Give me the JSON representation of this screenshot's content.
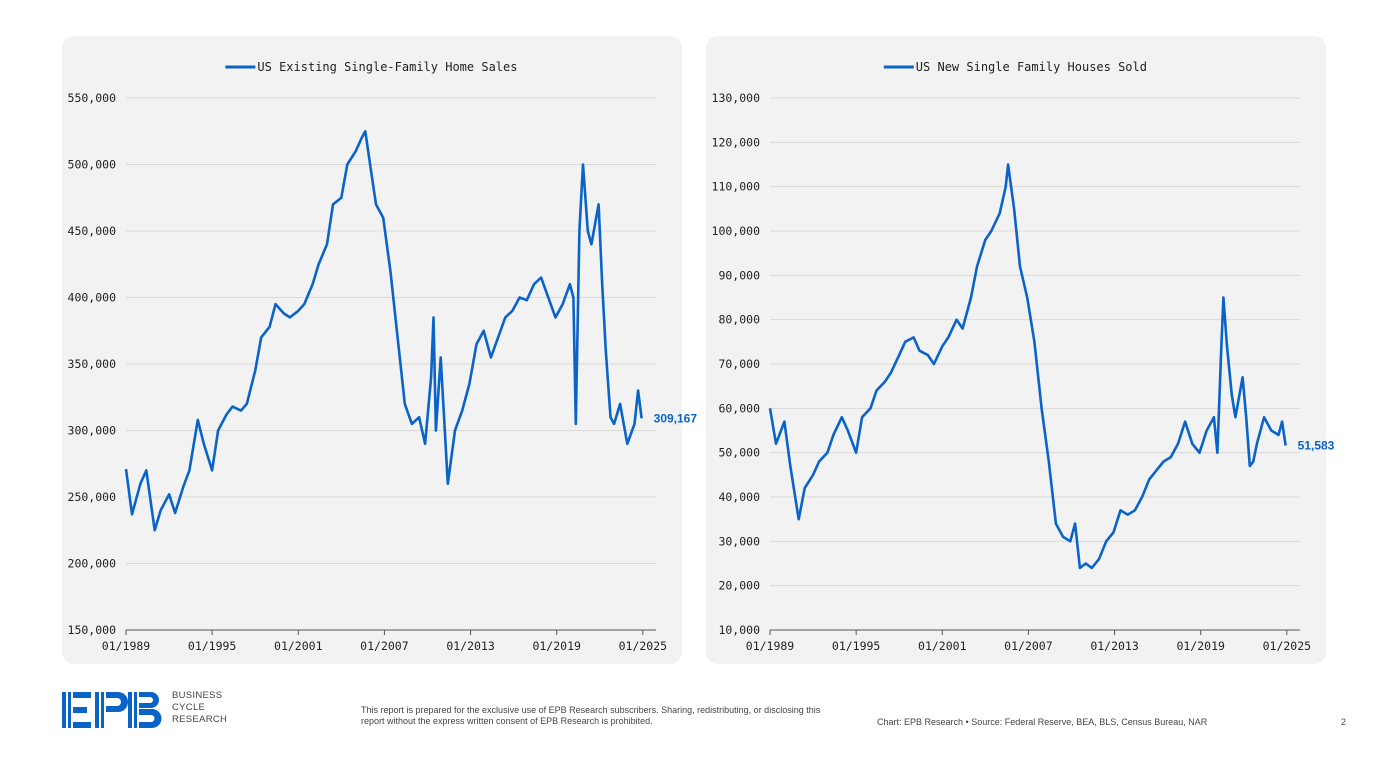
{
  "colors": {
    "line": "#0a64c8",
    "panel": "#f2f2f2",
    "grid": "#d9d9d9",
    "axis": "#555555",
    "brand": "#0a64c8"
  },
  "footer": {
    "logo_text": "EPB",
    "logo_sub": [
      "BUSINESS",
      "CYCLE",
      "RESEARCH"
    ],
    "disclaimer": "This report is prepared for the exclusive use of EPB Research subscribers. Sharing, redistributing, or disclosing this report without the express written consent of EPB Research is prohibited.",
    "source": "Chart: EPB Research  •  Source: Federal Reserve, BEA, BLS, Census Bureau, NAR",
    "page": "2"
  },
  "chart_data": [
    {
      "type": "line",
      "series": [
        {
          "name": "US Existing Single-Family Home Sales",
          "end_label": "309,167"
        }
      ],
      "x_ticks": [
        "01/1989",
        "01/1995",
        "01/2001",
        "01/2007",
        "01/2013",
        "01/2019",
        "01/2025"
      ],
      "y_ticks": [
        "150,000",
        "200,000",
        "250,000",
        "300,000",
        "350,000",
        "400,000",
        "450,000",
        "500,000",
        "550,000"
      ],
      "xlim": [
        "1989-01",
        "2025-12"
      ],
      "ylim": [
        150000,
        550000
      ],
      "grid": "horizontal",
      "legend": "top-center",
      "points": [
        [
          "1989-01",
          271000
        ],
        [
          "1989-06",
          237000
        ],
        [
          "1990-01",
          260000
        ],
        [
          "1990-06",
          270000
        ],
        [
          "1991-01",
          225000
        ],
        [
          "1991-06",
          240000
        ],
        [
          "1992-01",
          252000
        ],
        [
          "1992-06",
          238000
        ],
        [
          "1993-01",
          258000
        ],
        [
          "1993-06",
          270000
        ],
        [
          "1994-01",
          308000
        ],
        [
          "1994-06",
          290000
        ],
        [
          "1995-01",
          270000
        ],
        [
          "1995-06",
          300000
        ],
        [
          "1996-01",
          312000
        ],
        [
          "1996-06",
          318000
        ],
        [
          "1997-01",
          315000
        ],
        [
          "1997-06",
          320000
        ],
        [
          "1998-01",
          345000
        ],
        [
          "1998-06",
          370000
        ],
        [
          "1999-01",
          378000
        ],
        [
          "1999-06",
          395000
        ],
        [
          "2000-01",
          388000
        ],
        [
          "2000-06",
          385000
        ],
        [
          "2001-01",
          390000
        ],
        [
          "2001-06",
          395000
        ],
        [
          "2002-01",
          410000
        ],
        [
          "2002-06",
          425000
        ],
        [
          "2003-01",
          440000
        ],
        [
          "2003-06",
          470000
        ],
        [
          "2004-01",
          475000
        ],
        [
          "2004-06",
          500000
        ],
        [
          "2005-01",
          510000
        ],
        [
          "2005-06",
          520000
        ],
        [
          "2005-09",
          525000
        ],
        [
          "2006-01",
          500000
        ],
        [
          "2006-06",
          470000
        ],
        [
          "2006-12",
          460000
        ],
        [
          "2007-06",
          420000
        ],
        [
          "2007-12",
          370000
        ],
        [
          "2008-06",
          320000
        ],
        [
          "2008-12",
          305000
        ],
        [
          "2009-06",
          310000
        ],
        [
          "2009-11",
          290000
        ],
        [
          "2010-04",
          340000
        ],
        [
          "2010-06",
          385000
        ],
        [
          "2010-08",
          300000
        ],
        [
          "2010-12",
          355000
        ],
        [
          "2011-06",
          260000
        ],
        [
          "2011-12",
          300000
        ],
        [
          "2012-06",
          315000
        ],
        [
          "2012-12",
          335000
        ],
        [
          "2013-06",
          365000
        ],
        [
          "2013-12",
          375000
        ],
        [
          "2014-06",
          355000
        ],
        [
          "2014-12",
          370000
        ],
        [
          "2015-06",
          385000
        ],
        [
          "2015-12",
          390000
        ],
        [
          "2016-06",
          400000
        ],
        [
          "2016-12",
          398000
        ],
        [
          "2017-06",
          410000
        ],
        [
          "2017-12",
          415000
        ],
        [
          "2018-06",
          400000
        ],
        [
          "2018-12",
          385000
        ],
        [
          "2019-06",
          395000
        ],
        [
          "2019-12",
          410000
        ],
        [
          "2020-03",
          400000
        ],
        [
          "2020-05",
          305000
        ],
        [
          "2020-08",
          450000
        ],
        [
          "2020-11",
          500000
        ],
        [
          "2021-03",
          450000
        ],
        [
          "2021-06",
          440000
        ],
        [
          "2021-12",
          470000
        ],
        [
          "2022-03",
          410000
        ],
        [
          "2022-06",
          360000
        ],
        [
          "2022-10",
          310000
        ],
        [
          "2023-01",
          305000
        ],
        [
          "2023-06",
          320000
        ],
        [
          "2023-12",
          290000
        ],
        [
          "2024-06",
          305000
        ],
        [
          "2024-09",
          330000
        ],
        [
          "2024-12",
          309167
        ]
      ]
    },
    {
      "type": "line",
      "series": [
        {
          "name": "US New Single Family Houses Sold",
          "end_label": "51,583"
        }
      ],
      "x_ticks": [
        "01/1989",
        "01/1995",
        "01/2001",
        "01/2007",
        "01/2013",
        "01/2019",
        "01/2025"
      ],
      "y_ticks": [
        "10,000",
        "20,000",
        "30,000",
        "40,000",
        "50,000",
        "60,000",
        "70,000",
        "80,000",
        "90,000",
        "100,000",
        "110,000",
        "120,000",
        "130,000"
      ],
      "xlim": [
        "1989-01",
        "2025-12"
      ],
      "ylim": [
        10000,
        130000
      ],
      "grid": "horizontal",
      "legend": "top-center",
      "points": [
        [
          "1989-01",
          60000
        ],
        [
          "1989-06",
          52000
        ],
        [
          "1990-01",
          57000
        ],
        [
          "1990-06",
          47000
        ],
        [
          "1991-01",
          35000
        ],
        [
          "1991-06",
          42000
        ],
        [
          "1992-01",
          45000
        ],
        [
          "1992-06",
          48000
        ],
        [
          "1993-01",
          50000
        ],
        [
          "1993-06",
          54000
        ],
        [
          "1994-01",
          58000
        ],
        [
          "1994-06",
          55000
        ],
        [
          "1995-01",
          50000
        ],
        [
          "1995-06",
          58000
        ],
        [
          "1996-01",
          60000
        ],
        [
          "1996-06",
          64000
        ],
        [
          "1997-01",
          66000
        ],
        [
          "1997-06",
          68000
        ],
        [
          "1998-01",
          72000
        ],
        [
          "1998-06",
          75000
        ],
        [
          "1999-01",
          76000
        ],
        [
          "1999-06",
          73000
        ],
        [
          "2000-01",
          72000
        ],
        [
          "2000-06",
          70000
        ],
        [
          "2001-01",
          74000
        ],
        [
          "2001-06",
          76000
        ],
        [
          "2002-01",
          80000
        ],
        [
          "2002-06",
          78000
        ],
        [
          "2003-01",
          85000
        ],
        [
          "2003-06",
          92000
        ],
        [
          "2004-01",
          98000
        ],
        [
          "2004-06",
          100000
        ],
        [
          "2005-01",
          104000
        ],
        [
          "2005-06",
          110000
        ],
        [
          "2005-08",
          115000
        ],
        [
          "2006-01",
          105000
        ],
        [
          "2006-06",
          92000
        ],
        [
          "2006-12",
          85000
        ],
        [
          "2007-06",
          75000
        ],
        [
          "2007-12",
          60000
        ],
        [
          "2008-06",
          48000
        ],
        [
          "2008-12",
          34000
        ],
        [
          "2009-06",
          31000
        ],
        [
          "2009-12",
          30000
        ],
        [
          "2010-04",
          34000
        ],
        [
          "2010-08",
          24000
        ],
        [
          "2011-01",
          25000
        ],
        [
          "2011-06",
          24000
        ],
        [
          "2011-12",
          26000
        ],
        [
          "2012-06",
          30000
        ],
        [
          "2012-12",
          32000
        ],
        [
          "2013-06",
          37000
        ],
        [
          "2013-12",
          36000
        ],
        [
          "2014-06",
          37000
        ],
        [
          "2014-12",
          40000
        ],
        [
          "2015-06",
          44000
        ],
        [
          "2015-12",
          46000
        ],
        [
          "2016-06",
          48000
        ],
        [
          "2016-12",
          49000
        ],
        [
          "2017-06",
          52000
        ],
        [
          "2017-12",
          57000
        ],
        [
          "2018-06",
          52000
        ],
        [
          "2018-12",
          50000
        ],
        [
          "2019-06",
          55000
        ],
        [
          "2019-12",
          58000
        ],
        [
          "2020-03",
          50000
        ],
        [
          "2020-06",
          72000
        ],
        [
          "2020-08",
          85000
        ],
        [
          "2020-11",
          74000
        ],
        [
          "2021-03",
          63000
        ],
        [
          "2021-06",
          58000
        ],
        [
          "2021-12",
          67000
        ],
        [
          "2022-03",
          58000
        ],
        [
          "2022-06",
          47000
        ],
        [
          "2022-09",
          48000
        ],
        [
          "2022-12",
          52000
        ],
        [
          "2023-06",
          58000
        ],
        [
          "2023-12",
          55000
        ],
        [
          "2024-06",
          54000
        ],
        [
          "2024-09",
          57000
        ],
        [
          "2024-12",
          51583
        ]
      ]
    }
  ]
}
